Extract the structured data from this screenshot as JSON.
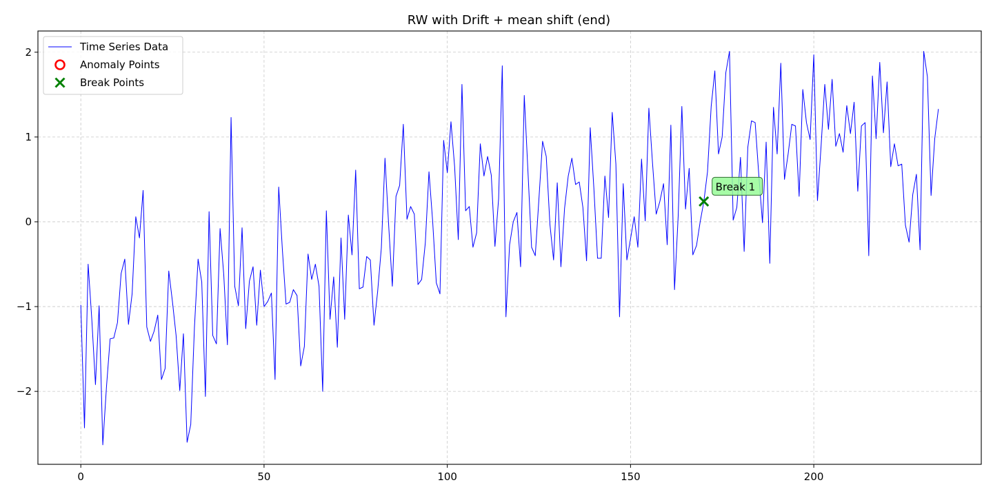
{
  "chart_data": {
    "type": "line",
    "title": "RW with Drift + mean shift (end)",
    "xlabel": "",
    "ylabel": "",
    "xlim": [
      -11.7,
      245.7
    ],
    "ylim": [
      -2.86,
      2.25
    ],
    "xticks": [
      0,
      50,
      100,
      150,
      200
    ],
    "yticks": [
      -2,
      -1,
      0,
      1,
      2
    ],
    "grid": true,
    "legend_position": "top-left",
    "legend": [
      {
        "label": "Time Series Data",
        "marker": "line",
        "color": "#0000ff"
      },
      {
        "label": "Anomaly Points",
        "marker": "circle",
        "color": "#ff0000"
      },
      {
        "label": "Break Points",
        "marker": "x",
        "color": "#008000"
      }
    ],
    "series": [
      {
        "name": "Time Series Data",
        "color": "#0000ff",
        "values": [
          -0.98,
          -2.43,
          -0.5,
          -1.15,
          -1.92,
          -0.99,
          -2.63,
          -1.95,
          -1.38,
          -1.37,
          -1.19,
          -0.61,
          -0.44,
          -1.21,
          -0.85,
          0.06,
          -0.19,
          0.37,
          -1.24,
          -1.41,
          -1.29,
          -1.1,
          -1.86,
          -1.73,
          -0.58,
          -0.94,
          -1.34,
          -1.99,
          -1.32,
          -2.6,
          -2.39,
          -1.25,
          -0.44,
          -0.71,
          -2.06,
          0.12,
          -1.34,
          -1.44,
          -0.08,
          -0.62,
          -1.45,
          1.23,
          -0.76,
          -0.99,
          -0.07,
          -1.26,
          -0.7,
          -0.53,
          -1.22,
          -0.57,
          -1.0,
          -0.94,
          -0.84,
          -1.86,
          0.41,
          -0.33,
          -0.97,
          -0.95,
          -0.8,
          -0.87,
          -1.7,
          -1.47,
          -0.38,
          -0.68,
          -0.5,
          -0.76,
          -2.0,
          0.13,
          -1.15,
          -0.65,
          -1.48,
          -0.19,
          -1.15,
          0.08,
          -0.39,
          0.61,
          -0.79,
          -0.77,
          -0.41,
          -0.45,
          -1.22,
          -0.82,
          -0.31,
          0.75,
          -0.04,
          -0.76,
          0.3,
          0.43,
          1.15,
          0.03,
          0.18,
          0.09,
          -0.74,
          -0.68,
          -0.25,
          0.59,
          0.01,
          -0.72,
          -0.85,
          0.96,
          0.58,
          1.18,
          0.65,
          -0.21,
          1.62,
          0.13,
          0.18,
          -0.3,
          -0.13,
          0.92,
          0.54,
          0.77,
          0.55,
          -0.29,
          0.27,
          1.84,
          -1.12,
          -0.27,
          0.0,
          0.11,
          -0.53,
          1.49,
          0.6,
          -0.3,
          -0.4,
          0.27,
          0.95,
          0.77,
          -0.03,
          -0.45,
          0.46,
          -0.53,
          0.16,
          0.54,
          0.75,
          0.44,
          0.47,
          0.17,
          -0.46,
          1.11,
          0.39,
          -0.43,
          -0.43,
          0.54,
          0.05,
          1.29,
          0.68,
          -1.12,
          0.45,
          -0.45,
          -0.2,
          0.06,
          -0.3,
          0.74,
          0.01,
          1.34,
          0.69,
          0.09,
          0.24,
          0.45,
          -0.27,
          1.14,
          -0.8,
          0.07,
          1.36,
          0.15,
          0.63,
          -0.39,
          -0.28,
          0.0,
          0.24,
          0.59,
          1.36,
          1.78,
          0.8,
          1.0,
          1.76,
          2.01,
          0.02,
          0.17,
          0.76,
          -0.35,
          0.88,
          1.19,
          1.17,
          0.55,
          -0.01,
          0.94,
          -0.49,
          1.35,
          0.8,
          1.87,
          0.5,
          0.8,
          1.15,
          1.13,
          0.3,
          1.56,
          1.17,
          0.97,
          1.97,
          0.25,
          0.9,
          1.62,
          1.09,
          1.68,
          0.89,
          1.04,
          0.82,
          1.37,
          1.04,
          1.41,
          0.36,
          1.13,
          1.17,
          -0.4,
          1.72,
          0.98,
          1.88,
          1.05,
          1.65,
          0.65,
          0.92,
          0.66,
          0.68,
          -0.04,
          -0.24,
          0.32,
          0.56,
          -0.33,
          2.01,
          1.71,
          0.31,
          0.98,
          1.33
        ]
      }
    ],
    "anomaly_points": [],
    "break_points": [
      {
        "x": 170,
        "y": 0.24,
        "label": "Break 1"
      }
    ]
  }
}
